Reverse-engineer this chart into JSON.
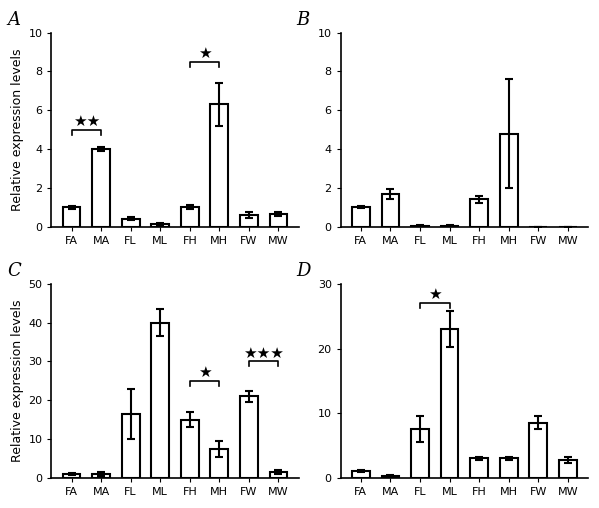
{
  "categories": [
    "FA",
    "MA",
    "FL",
    "ML",
    "FH",
    "MH",
    "FW",
    "MW"
  ],
  "panels": [
    {
      "label": "A",
      "values": [
        1.0,
        4.0,
        0.4,
        0.15,
        1.0,
        6.3,
        0.6,
        0.65
      ],
      "errors": [
        0.08,
        0.12,
        0.08,
        0.05,
        0.1,
        1.1,
        0.15,
        0.1
      ],
      "ylim": [
        0,
        10
      ],
      "yticks": [
        0,
        2,
        4,
        6,
        8,
        10
      ],
      "significance": [
        {
          "bars": [
            0,
            1
          ],
          "y": 5.0,
          "label": "★★"
        },
        {
          "bars": [
            4,
            5
          ],
          "y": 8.5,
          "label": "★"
        }
      ]
    },
    {
      "label": "B",
      "values": [
        1.0,
        1.7,
        0.05,
        0.05,
        1.4,
        4.8,
        0.0,
        0.0
      ],
      "errors": [
        0.05,
        0.25,
        0.02,
        0.02,
        0.2,
        2.8,
        0.0,
        0.0
      ],
      "ylim": [
        0,
        10
      ],
      "yticks": [
        0,
        2,
        4,
        6,
        8,
        10
      ],
      "significance": []
    },
    {
      "label": "C",
      "values": [
        1.0,
        1.0,
        16.5,
        40.0,
        15.0,
        7.5,
        21.0,
        1.5
      ],
      "errors": [
        0.3,
        0.4,
        6.5,
        3.5,
        2.0,
        2.0,
        1.5,
        0.5
      ],
      "ylim": [
        0,
        50
      ],
      "yticks": [
        0,
        10,
        20,
        30,
        40,
        50
      ],
      "significance": [
        {
          "bars": [
            4,
            5
          ],
          "y": 25,
          "label": "★"
        },
        {
          "bars": [
            6,
            7
          ],
          "y": 30,
          "label": "★★★"
        }
      ]
    },
    {
      "label": "D",
      "values": [
        1.0,
        0.3,
        7.5,
        23.0,
        3.0,
        3.0,
        8.5,
        2.8
      ],
      "errors": [
        0.15,
        0.1,
        2.0,
        2.8,
        0.3,
        0.3,
        1.0,
        0.5
      ],
      "ylim": [
        0,
        30
      ],
      "yticks": [
        0,
        10,
        20,
        30
      ],
      "significance": [
        {
          "bars": [
            2,
            3
          ],
          "y": 27,
          "label": "★"
        }
      ]
    }
  ],
  "ylabel": "Relative expression levels",
  "bar_color": "white",
  "bar_edgecolor": "black",
  "bar_linewidth": 1.5,
  "error_color": "black",
  "error_linewidth": 1.5,
  "error_capsize": 3,
  "fontsize_label": 9,
  "fontsize_tick": 8,
  "fontsize_panel": 13,
  "fontsize_star": 11,
  "bracket_linewidth": 1.2,
  "background_color": "white"
}
